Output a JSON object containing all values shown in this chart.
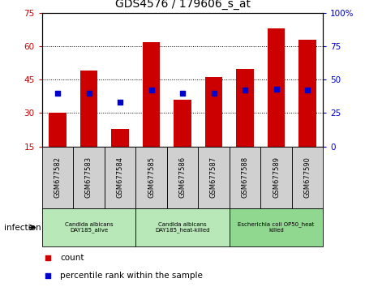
{
  "title": "GDS4576 / 179606_s_at",
  "samples": [
    "GSM677582",
    "GSM677583",
    "GSM677584",
    "GSM677585",
    "GSM677586",
    "GSM677587",
    "GSM677588",
    "GSM677589",
    "GSM677590"
  ],
  "counts": [
    30,
    49,
    23,
    62,
    36,
    46,
    50,
    68,
    63
  ],
  "percentile_ranks": [
    40,
    40,
    33,
    42,
    40,
    40,
    42,
    43,
    42
  ],
  "count_color": "#cc0000",
  "percentile_color": "#0000cc",
  "ylim_left": [
    15,
    75
  ],
  "ylim_right": [
    0,
    100
  ],
  "yticks_left": [
    15,
    30,
    45,
    60,
    75
  ],
  "yticks_right": [
    0,
    25,
    50,
    75,
    100
  ],
  "yticklabels_right": [
    "0",
    "25",
    "50",
    "75",
    "100%"
  ],
  "groups": [
    {
      "label": "Candida albicans\nDAY185_alive",
      "start": 0,
      "end": 3,
      "color": "#b8e8b8"
    },
    {
      "label": "Candida albicans\nDAY185_heat-killed",
      "start": 3,
      "end": 6,
      "color": "#b8e8b8"
    },
    {
      "label": "Escherichia coli OP50_heat\nkilled",
      "start": 6,
      "end": 9,
      "color": "#90d890"
    }
  ],
  "infection_label": "infection",
  "legend_count": "count",
  "legend_percentile": "percentile rank within the sample",
  "bar_width": 0.55,
  "background_color": "#ffffff",
  "sample_box_color": "#d0d0d0"
}
